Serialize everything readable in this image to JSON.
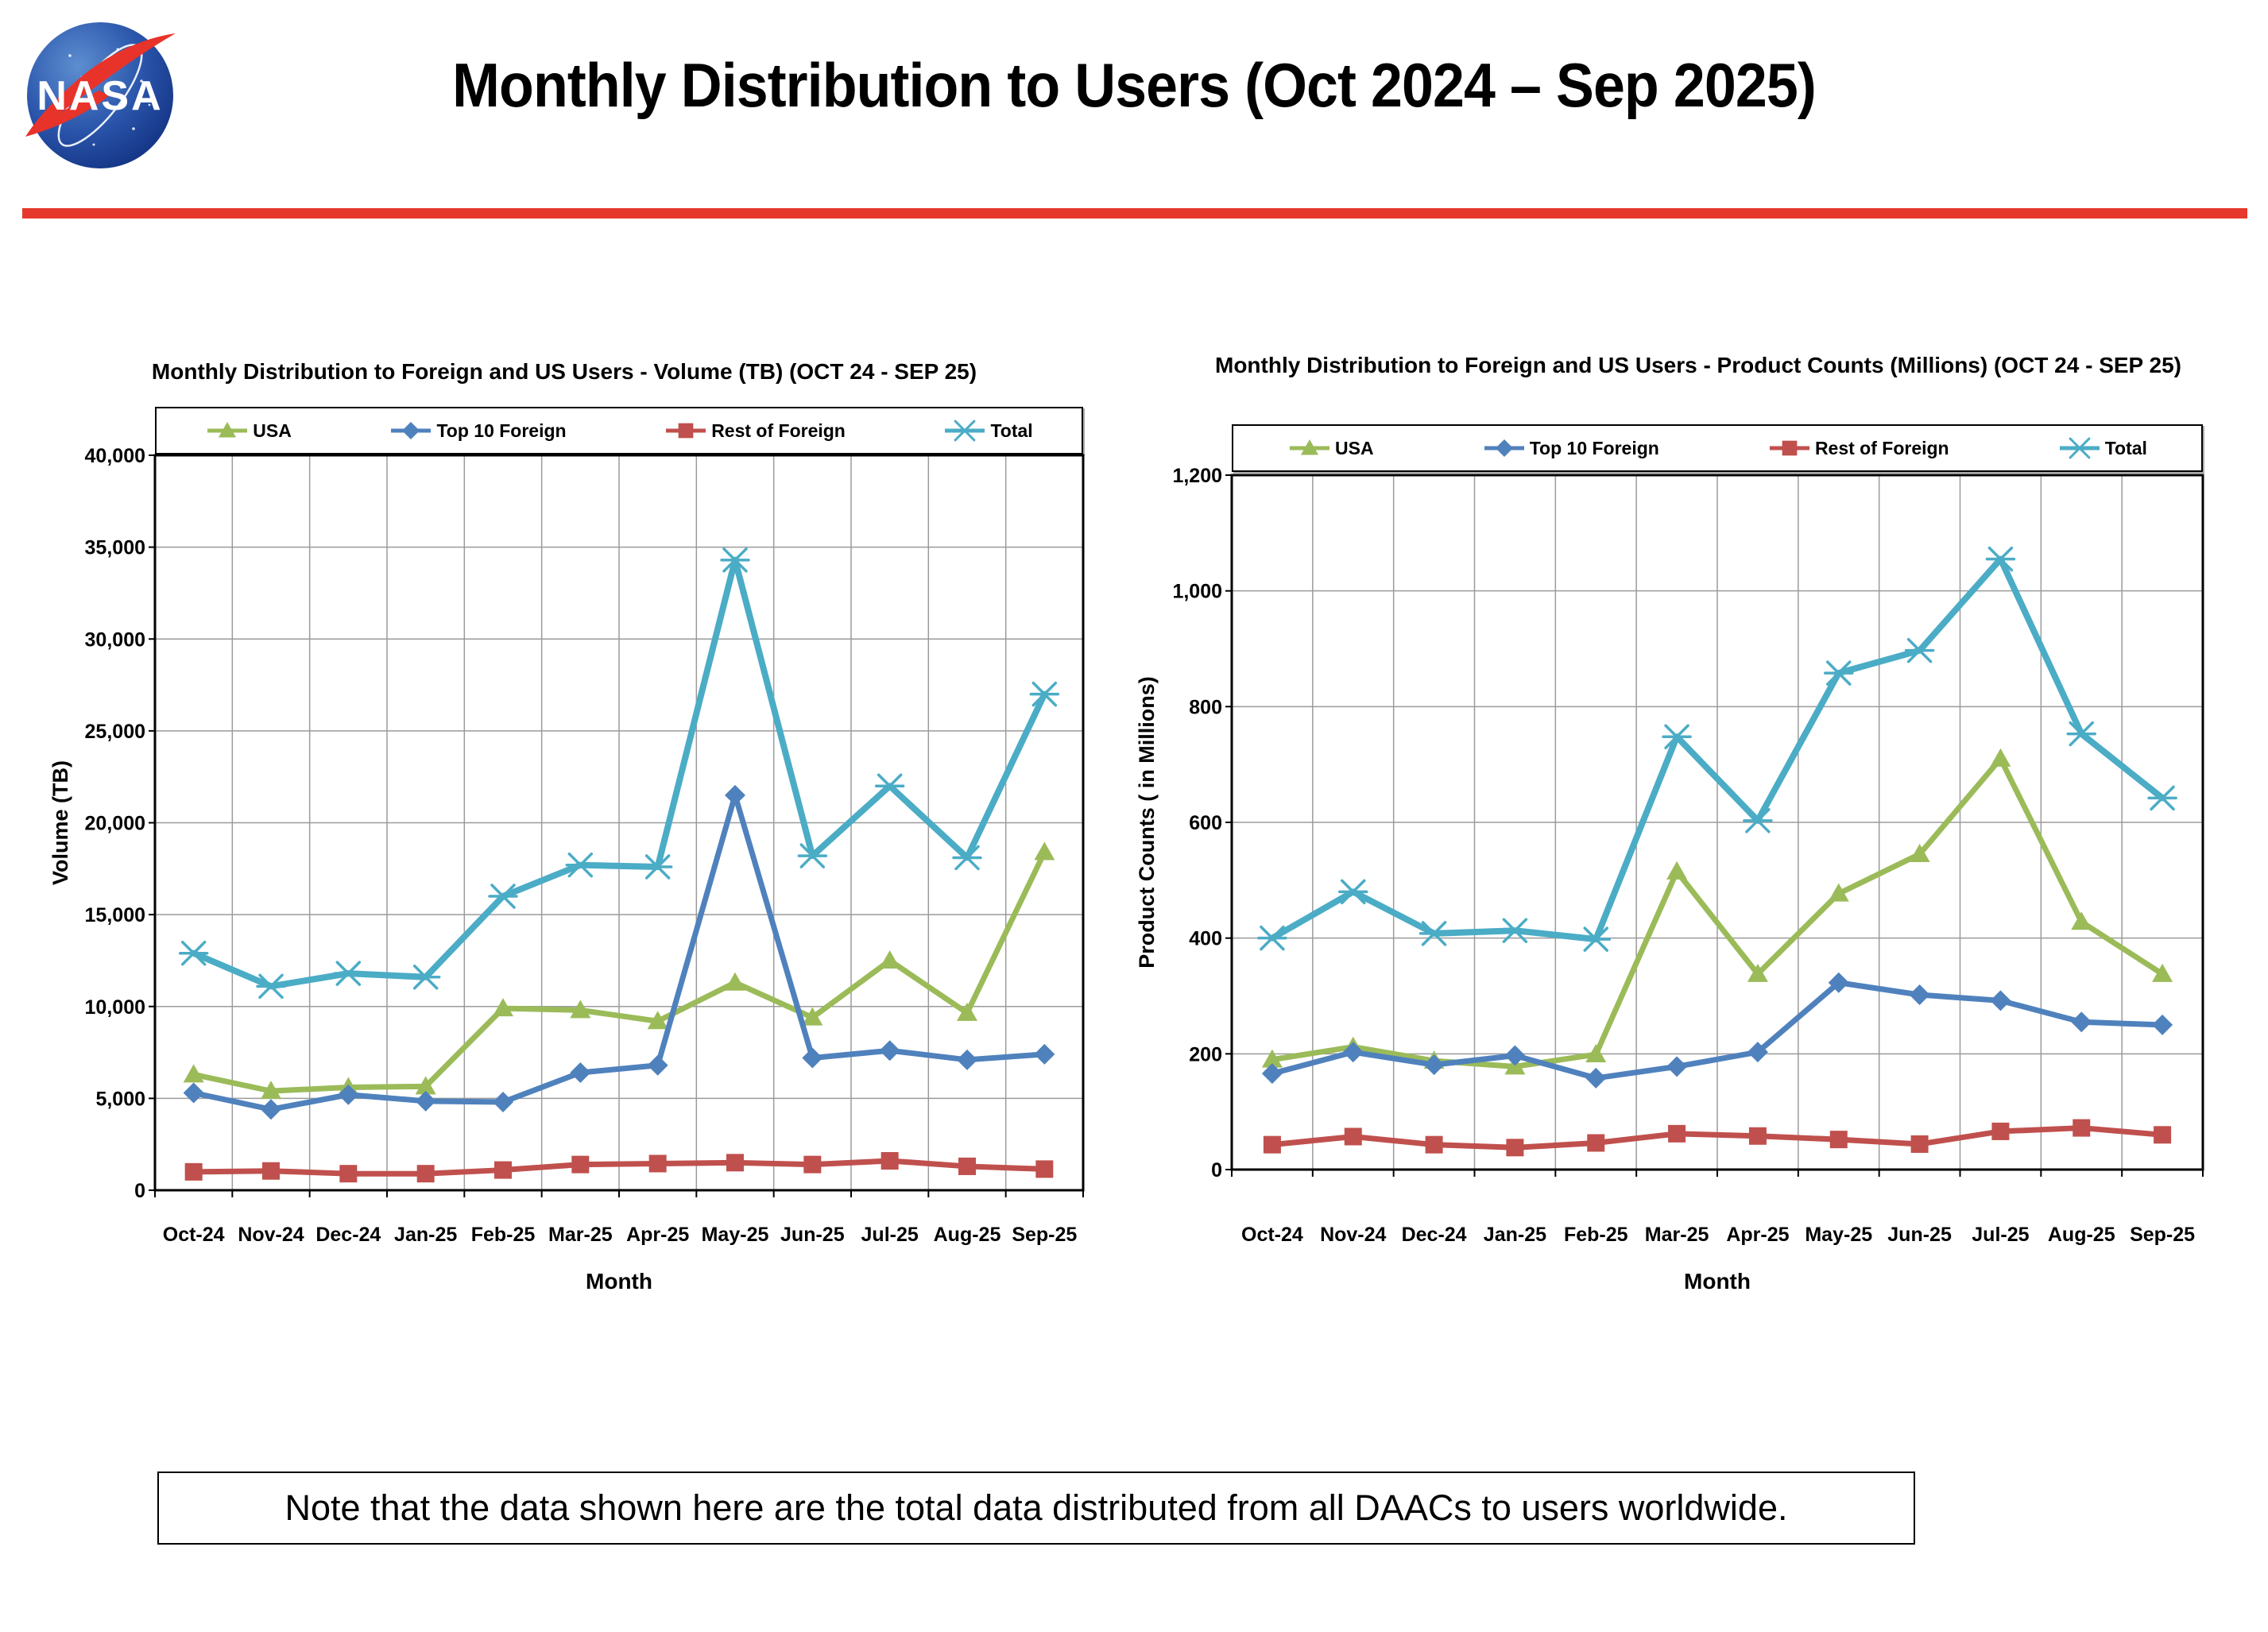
{
  "header": {
    "title": "Monthly Distribution to Users (Oct 2024 – Sep 2025)",
    "logo_alt": "NASA"
  },
  "divider_color": "#E6392C",
  "note": {
    "text": "Note that the data shown here are the total data distributed from all DAACs to users worldwide."
  },
  "chart_data": [
    {
      "type": "line",
      "title": "Monthly Distribution to Foreign and US Users - Volume  (TB) (OCT 24 - SEP 25)",
      "xlabel": "Month",
      "ylabel": "Volume (TB)",
      "ylim": [
        0,
        40000
      ],
      "ystep": 5000,
      "yticks": [
        "0",
        "5,000",
        "10,000",
        "15,000",
        "20,000",
        "25,000",
        "30,000",
        "35,000",
        "40,000"
      ],
      "grid": true,
      "legend_position": "top",
      "categories": [
        "Oct-24",
        "Nov-24",
        "Dec-24",
        "Jan-25",
        "Feb-25",
        "Mar-25",
        "Apr-25",
        "May-25",
        "Jun-25",
        "Jul-25",
        "Aug-25",
        "Sep-25"
      ],
      "series": [
        {
          "name": "USA",
          "color": "#9BBB59",
          "marker": "triangle",
          "values": [
            6300,
            5400,
            5600,
            5650,
            9900,
            9800,
            9200,
            11300,
            9400,
            12500,
            9650,
            18400
          ]
        },
        {
          "name": "Top 10 Foreign",
          "color": "#4F81BD",
          "marker": "diamond",
          "values": [
            5300,
            4400,
            5200,
            4850,
            4800,
            6400,
            6800,
            21500,
            7200,
            7600,
            7100,
            7400
          ]
        },
        {
          "name": "Rest of Foreign",
          "color": "#C0504D",
          "marker": "square",
          "values": [
            1000,
            1050,
            900,
            900,
            1100,
            1400,
            1450,
            1500,
            1400,
            1600,
            1300,
            1150
          ]
        },
        {
          "name": "Total",
          "color": "#4BACC6",
          "marker": "star",
          "values": [
            12900,
            11100,
            11800,
            11600,
            16000,
            17700,
            17600,
            34300,
            18200,
            22000,
            18100,
            27000
          ]
        }
      ]
    },
    {
      "type": "line",
      "title": "Monthly Distribution to Foreign and US Users - Product Counts (Millions) (OCT 24 - SEP 25)",
      "xlabel": "Month",
      "ylabel": "Product Counts ( in Millions)",
      "ylim": [
        0,
        1200
      ],
      "ystep": 200,
      "yticks": [
        "0",
        "200",
        "400",
        "600",
        "800",
        "1,000",
        "1,200"
      ],
      "grid": true,
      "legend_position": "top",
      "categories": [
        "Oct-24",
        "Nov-24",
        "Dec-24",
        "Jan-25",
        "Feb-25",
        "Mar-25",
        "Apr-25",
        "May-25",
        "Jun-25",
        "Jul-25",
        "Aug-25",
        "Sep-25"
      ],
      "series": [
        {
          "name": "USA",
          "color": "#9BBB59",
          "marker": "triangle",
          "values": [
            190,
            212,
            188,
            178,
            199,
            515,
            338,
            477,
            545,
            710,
            428,
            338
          ]
        },
        {
          "name": "Top 10 Foreign",
          "color": "#4F81BD",
          "marker": "diamond",
          "values": [
            166,
            203,
            181,
            197,
            158,
            178,
            203,
            323,
            302,
            292,
            255,
            250
          ]
        },
        {
          "name": "Rest of Foreign",
          "color": "#C0504D",
          "marker": "square",
          "values": [
            43,
            57,
            43,
            38,
            46,
            62,
            58,
            52,
            44,
            66,
            72,
            60
          ]
        },
        {
          "name": "Total",
          "color": "#4BACC6",
          "marker": "star",
          "values": [
            400,
            480,
            408,
            413,
            398,
            748,
            603,
            858,
            897,
            1055,
            753,
            642
          ]
        }
      ]
    }
  ]
}
